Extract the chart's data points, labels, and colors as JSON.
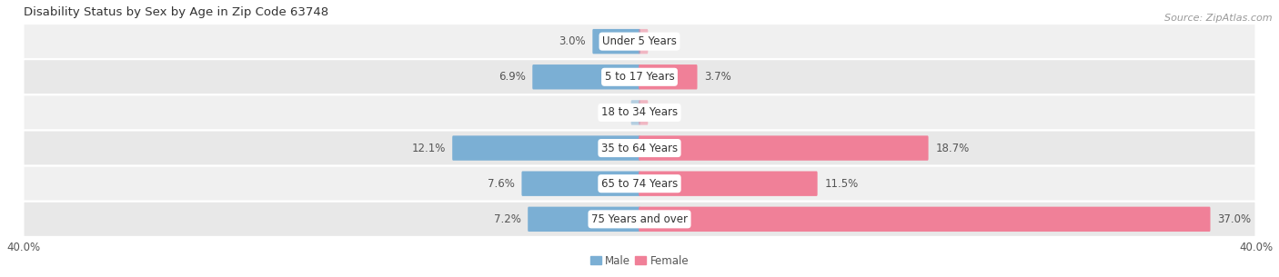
{
  "title": "Disability Status by Sex by Age in Zip Code 63748",
  "source": "Source: ZipAtlas.com",
  "categories": [
    "Under 5 Years",
    "5 to 17 Years",
    "18 to 34 Years",
    "35 to 64 Years",
    "65 to 74 Years",
    "75 Years and over"
  ],
  "male_values": [
    3.0,
    6.9,
    0.0,
    12.1,
    7.6,
    7.2
  ],
  "female_values": [
    0.0,
    3.7,
    0.0,
    18.7,
    11.5,
    37.0
  ],
  "male_color": "#7bafd4",
  "female_color": "#f08098",
  "row_colors": [
    "#f0f0f0",
    "#e8e8e8"
  ],
  "separator_color": "#ffffff",
  "axis_limit": 40.0,
  "bar_height": 0.6,
  "title_fontsize": 9.5,
  "source_fontsize": 8,
  "label_fontsize": 8.5,
  "tick_fontsize": 8.5,
  "category_fontsize": 8.5
}
